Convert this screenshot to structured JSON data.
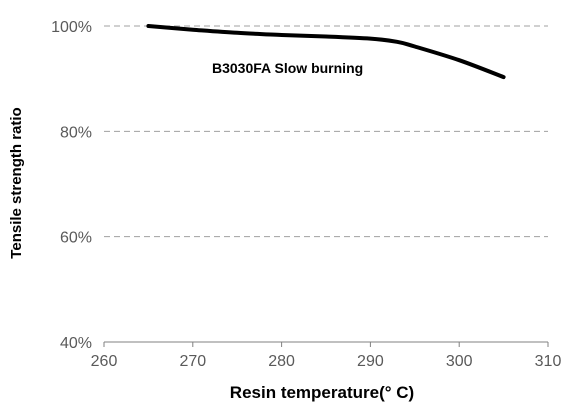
{
  "chart_data": {
    "type": "line",
    "title": "",
    "xlabel": "Resin temperature(° C)",
    "ylabel": "Tensile strength ratio",
    "xlim": [
      260,
      310
    ],
    "ylim": [
      40,
      100
    ],
    "x_ticks": [
      260,
      270,
      280,
      290,
      300,
      310
    ],
    "y_ticks": [
      40,
      60,
      80,
      100
    ],
    "x_tick_labels": [
      "260",
      "270",
      "280",
      "290",
      "300",
      "310"
    ],
    "y_tick_labels": [
      "40%",
      "60%",
      "80%",
      "100%"
    ],
    "grid": "horizontal dashed",
    "series": [
      {
        "name": "B3030FA Slow burning",
        "color": "#000000",
        "x": [
          265,
          270,
          275,
          280,
          285,
          290,
          293,
          295,
          300,
          305
        ],
        "y": [
          100,
          99.3,
          98.7,
          98.3,
          98.0,
          97.6,
          97.0,
          96.1,
          93.5,
          90.3
        ]
      }
    ]
  }
}
